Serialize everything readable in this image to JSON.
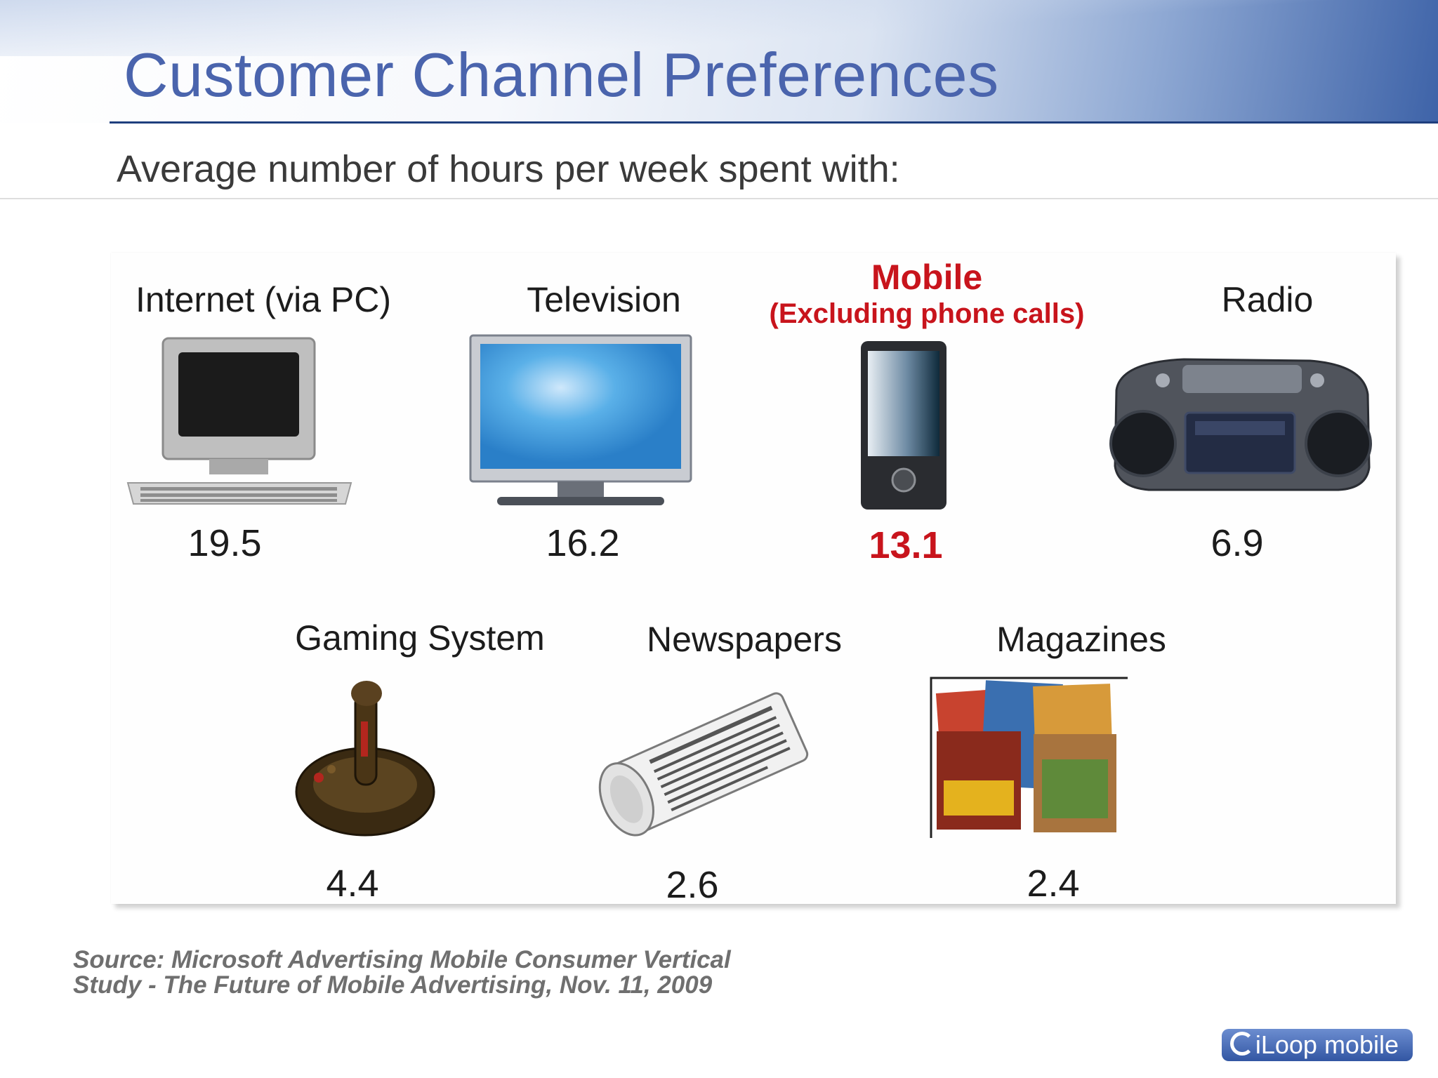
{
  "slide": {
    "title": "Customer Channel Preferences",
    "subtitle": "Average number of hours per week spent with:"
  },
  "channels": [
    {
      "label": "Internet (via PC)",
      "value": "19.5",
      "icon": "desktop-computer-icon"
    },
    {
      "label": "Television",
      "value": "16.2",
      "icon": "flat-screen-tv-icon"
    },
    {
      "label": "Mobile",
      "note": "(Excluding phone calls)",
      "value": "13.1",
      "icon": "smartphone-icon",
      "highlight": "#c8141c"
    },
    {
      "label": "Radio",
      "value": "6.9",
      "icon": "boombox-radio-icon"
    },
    {
      "label": "Gaming System",
      "value": "4.4",
      "icon": "joystick-icon"
    },
    {
      "label": "Newspapers",
      "value": "2.6",
      "icon": "rolled-newspaper-icon"
    },
    {
      "label": "Magazines",
      "value": "2.4",
      "icon": "magazine-stack-icon"
    }
  ],
  "source": {
    "line1": "Source: Microsoft Advertising Mobile Consumer Vertical",
    "line2": "Study - The Future of Mobile Advertising, Nov. 11, 2009"
  },
  "logo": {
    "text": "iLoop mobile"
  },
  "colors": {
    "title": "#4a64ad",
    "highlight": "#c8141c",
    "rule": "#1f3f7e"
  }
}
